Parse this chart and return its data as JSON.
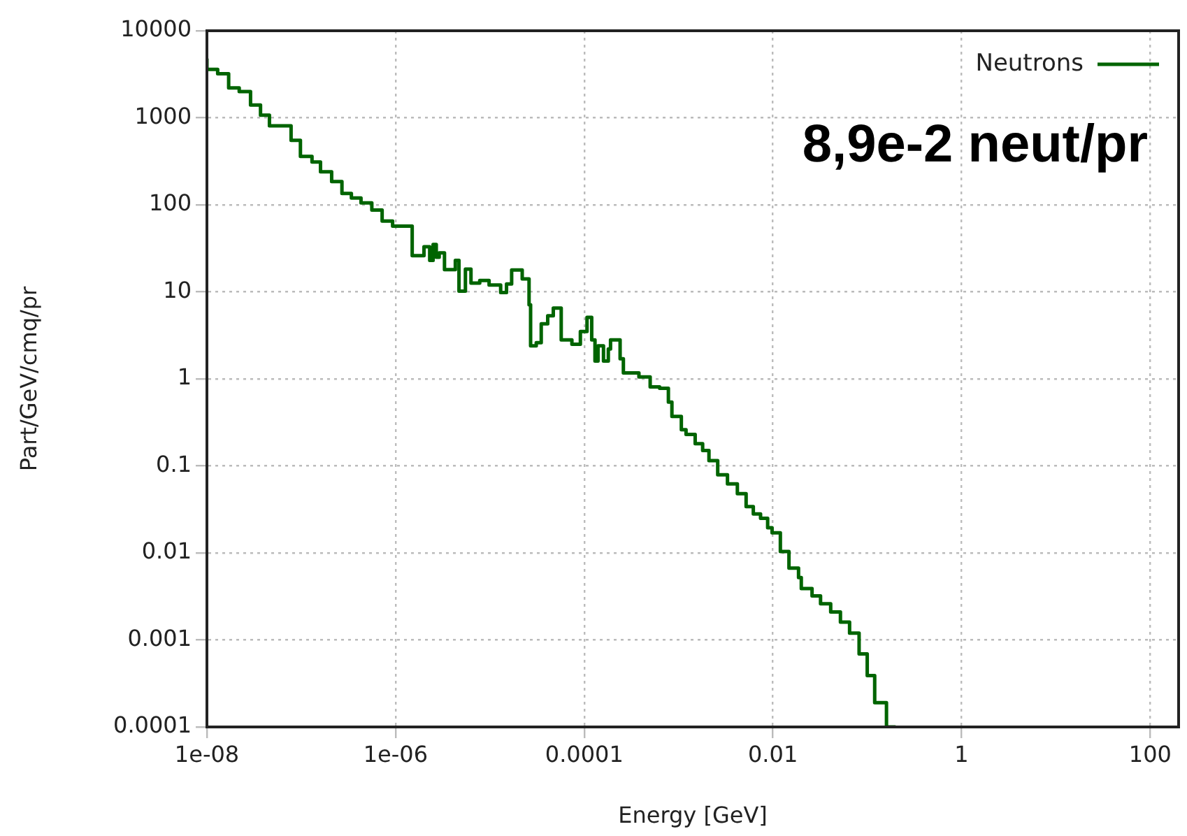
{
  "chart_data": {
    "type": "step",
    "xlabel": "Energy [GeV]",
    "ylabel": "Part/GeV/cmq/pr",
    "annotations": [
      "8,9e-2 neut/pr"
    ],
    "log": "xy",
    "grid": true,
    "legend": "top right",
    "xlim": [
      1e-08,
      200
    ],
    "xticks": [
      {
        "value": 1e-08,
        "label": "1e-08"
      },
      {
        "value": 1e-06,
        "label": "1e-06"
      },
      0.0001,
      0.01,
      1,
      100
    ],
    "ylim": [
      0.0001,
      10000
    ],
    "yticks": [
      0.0001,
      0.001,
      0.01,
      0.1,
      1,
      10,
      100,
      1000,
      10000
    ],
    "x": [
      1e-08,
      1.3e-08,
      1.7e-08,
      2.2e-08,
      2.9e-08,
      3.7e-08,
      4.6e-08,
      7.8e-08,
      9.8e-08,
      1.3e-07,
      1.6e-07,
      2.1e-07,
      2.7e-07,
      3.4e-07,
      4.3e-07,
      5.6e-07,
      7.2e-07,
      9.3e-07,
      1.5e-06,
      2e-06,
      2.3e-06,
      2.5e-06,
      2.7e-06,
      2.9e-06,
      3.3e-06,
      4.3e-06,
      4.7e-06,
      5.5e-06,
      6.3e-06,
      7.8e-06,
      9.8e-06,
      1.3e-05,
      1.5e-05,
      1.7e-05,
      2.2e-05,
      2.6e-05,
      2.7e-05,
      3.1e-05,
      3.5e-05,
      4.1e-05,
      4.7e-05,
      5.7e-05,
      7.4e-05,
      9.1e-05,
      0.000107,
      0.00012,
      0.00013,
      0.00014,
      0.00016,
      0.00018,
      0.00019,
      0.00024,
      0.00026,
      0.00038,
      0.0005,
      0.00063,
      0.00078,
      0.00085,
      0.00107,
      0.0012,
      0.0015,
      0.0018,
      0.0021,
      0.0026,
      0.0033,
      0.0042,
      0.0052,
      0.0062,
      0.0074,
      0.0088,
      0.0098,
      0.012,
      0.0148,
      0.0187,
      0.02,
      0.026,
      0.032,
      0.041,
      0.052,
      0.065,
      0.082,
      0.1,
      0.12,
      0.16,
      0.2
    ],
    "series": [
      {
        "name": "Neutrons",
        "color": "#006400",
        "values": [
          4800,
          3600,
          3200,
          2200,
          2000,
          1400,
          1070,
          810,
          550,
          360,
          310,
          240,
          185,
          135,
          120,
          105,
          87,
          65,
          57,
          26,
          33,
          23,
          35,
          25,
          28,
          18,
          23,
          10.2,
          18.2,
          12.6,
          13.5,
          12,
          9.8,
          12.3,
          17.8,
          14.1,
          7.1,
          2.4,
          2.6,
          4.3,
          5.3,
          6.5,
          2.8,
          2.5,
          3.5,
          5.1,
          2.8,
          1.6,
          2.4,
          1.6,
          2.2,
          2.8,
          1.7,
          1.17,
          1.05,
          0.81,
          0.78,
          0.54,
          0.37,
          0.26,
          0.23,
          0.18,
          0.15,
          0.115,
          0.079,
          0.062,
          0.048,
          0.034,
          0.028,
          0.025,
          0.0195,
          0.017,
          0.0104,
          0.0067,
          0.0052,
          0.0039,
          0.0032,
          0.0026,
          0.0021,
          0.0016,
          0.0012,
          0.00069,
          0.00039,
          0.00019,
          0.0001
        ]
      }
    ]
  }
}
